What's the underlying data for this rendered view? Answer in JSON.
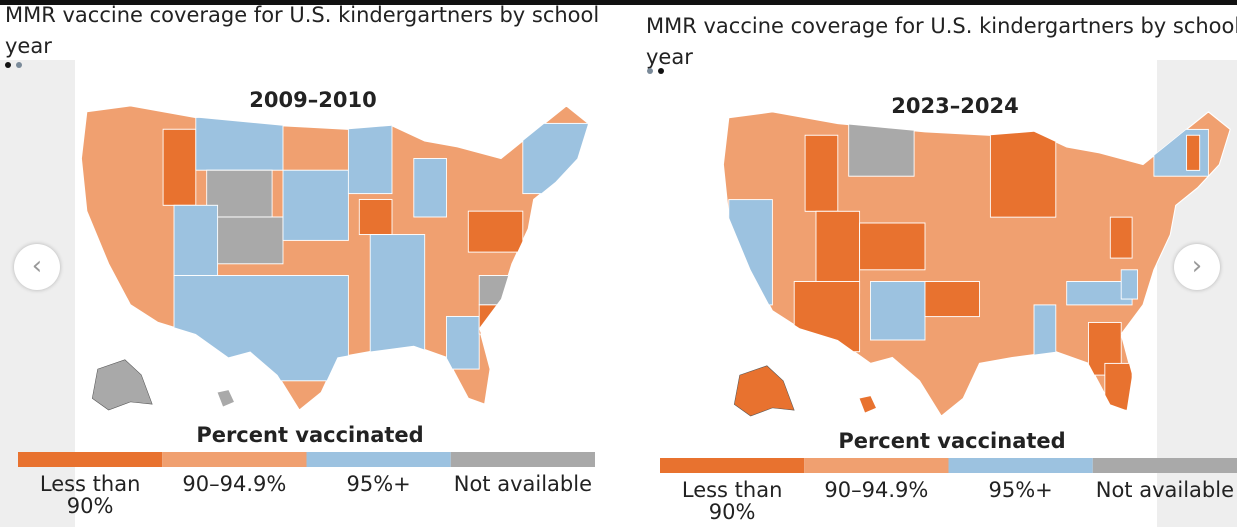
{
  "carousel": {
    "slides": [
      {
        "title": "MMR vaccine coverage for U.S. kindergartners by school year",
        "period": "2009–2010",
        "legend_title": "Percent vaccinated",
        "legend": [
          {
            "label": "Less than 90%",
            "color": "#e8722f"
          },
          {
            "label": "90–94.9%",
            "color": "#f0a070"
          },
          {
            "label": "95%+",
            "color": "#9cc2e0"
          },
          {
            "label": "Not available",
            "color": "#a9a9a9"
          }
        ]
      },
      {
        "title": "MMR vaccine coverage for U.S. kindergartners by school year",
        "period": "2023–2024",
        "legend_title": "Percent vaccinated",
        "legend": [
          {
            "label": "Less than 90%",
            "color": "#e8722f"
          },
          {
            "label": "90–94.9%",
            "color": "#f0a070"
          },
          {
            "label": "95%+",
            "color": "#9cc2e0"
          },
          {
            "label": "Not available",
            "color": "#a9a9a9"
          }
        ]
      }
    ]
  }
}
